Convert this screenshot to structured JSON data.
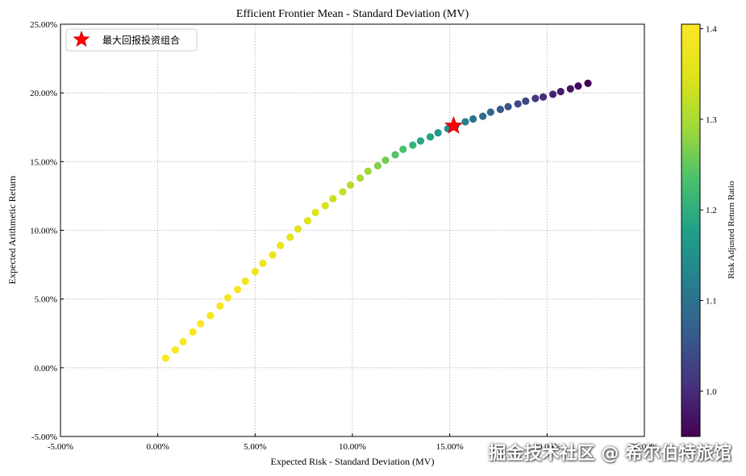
{
  "chart_data": {
    "type": "scatter",
    "title": "Efficient Frontier Mean - Standard Deviation (MV)",
    "xlabel": "Expected Risk - Standard Deviation (MV)",
    "ylabel": "Expected Arithmetic Return",
    "xlim": [
      -0.05,
      0.25
    ],
    "ylim": [
      -0.05,
      0.25
    ],
    "x_ticks": [
      -0.05,
      0.0,
      0.05,
      0.1,
      0.15,
      0.2,
      0.25
    ],
    "x_tick_labels": [
      "-5.00%",
      "0.00%",
      "5.00%",
      "10.00%",
      "15.00%",
      "20.00%",
      "25.00%"
    ],
    "y_ticks": [
      -0.05,
      0.0,
      0.05,
      0.1,
      0.15,
      0.2,
      0.25
    ],
    "y_tick_labels": [
      "-5.00%",
      "0.00%",
      "5.00%",
      "10.00%",
      "15.00%",
      "20.00%",
      "25.00%"
    ],
    "grid": true,
    "legend_position": "top-left",
    "colormap": "viridis",
    "colorbar": {
      "label": "Risk Adjusted Return Ratio",
      "range": [
        0.95,
        1.405
      ],
      "ticks": [
        1.0,
        1.1,
        1.2,
        1.3,
        1.4
      ],
      "tick_labels": [
        "1.0",
        "1.1",
        "1.2",
        "1.3",
        "1.4"
      ]
    },
    "series": [
      {
        "x": [
          0.004,
          0.009,
          0.013,
          0.018,
          0.022,
          0.027,
          0.032,
          0.036,
          0.041,
          0.045,
          0.05,
          0.054,
          0.059,
          0.063,
          0.068,
          0.072,
          0.077,
          0.081,
          0.086,
          0.09,
          0.095,
          0.099,
          0.104,
          0.108,
          0.113,
          0.117,
          0.122,
          0.126,
          0.131,
          0.135,
          0.14,
          0.144,
          0.149,
          0.153,
          0.158,
          0.162,
          0.167,
          0.171,
          0.176,
          0.18,
          0.185,
          0.189,
          0.194,
          0.198,
          0.203,
          0.207,
          0.212,
          0.216,
          0.221
        ],
        "y": [
          0.007,
          0.013,
          0.019,
          0.026,
          0.032,
          0.038,
          0.045,
          0.051,
          0.057,
          0.063,
          0.07,
          0.076,
          0.082,
          0.089,
          0.095,
          0.101,
          0.107,
          0.113,
          0.118,
          0.123,
          0.128,
          0.133,
          0.138,
          0.143,
          0.147,
          0.151,
          0.155,
          0.159,
          0.162,
          0.165,
          0.168,
          0.171,
          0.174,
          0.176,
          0.179,
          0.181,
          0.183,
          0.186,
          0.188,
          0.19,
          0.192,
          0.194,
          0.196,
          0.197,
          0.199,
          0.201,
          0.203,
          0.205,
          0.207
        ],
        "c": [
          1.4,
          1.4,
          1.4,
          1.4,
          1.4,
          1.39,
          1.39,
          1.39,
          1.39,
          1.38,
          1.38,
          1.38,
          1.37,
          1.37,
          1.36,
          1.36,
          1.35,
          1.35,
          1.34,
          1.33,
          1.32,
          1.31,
          1.3,
          1.29,
          1.27,
          1.26,
          1.24,
          1.23,
          1.21,
          1.19,
          1.18,
          1.16,
          1.15,
          1.13,
          1.12,
          1.1,
          1.09,
          1.08,
          1.06,
          1.05,
          1.04,
          1.03,
          1.01,
          1.0,
          0.99,
          0.98,
          0.97,
          0.96,
          0.95
        ]
      },
      {
        "name": "最大回报投资组合",
        "marker": "star",
        "color": "#ff0000",
        "x": [
          0.152
        ],
        "y": [
          0.176
        ]
      }
    ]
  },
  "watermark": "掘金技术社区 @ 希尔伯特旅馆"
}
